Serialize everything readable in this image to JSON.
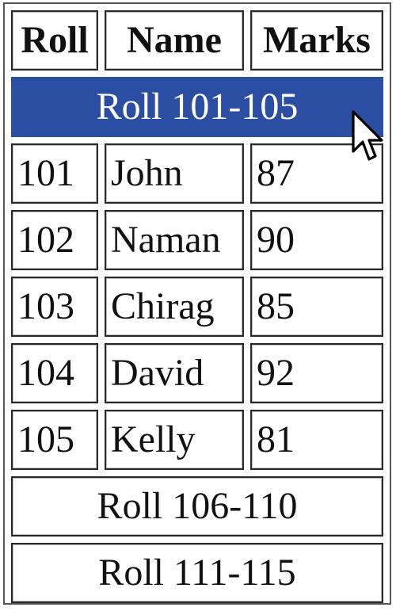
{
  "table": {
    "headers": [
      "Roll",
      "Name",
      "Marks"
    ],
    "groups": [
      {
        "label": "Roll 101-105",
        "active": true,
        "rows": [
          [
            "101",
            "John",
            "87"
          ],
          [
            "102",
            "Naman",
            "90"
          ],
          [
            "103",
            "Chirag",
            "85"
          ],
          [
            "104",
            "David",
            "92"
          ],
          [
            "105",
            "Kelly",
            "81"
          ]
        ]
      },
      {
        "label": "Roll 106-110",
        "active": false
      },
      {
        "label": "Roll 111-115",
        "active": false
      }
    ]
  },
  "colors": {
    "active_group_bg": "#2b4ea2",
    "active_group_text": "#ffffff",
    "cell_border": "#2a2a2a"
  },
  "icons": {
    "cursor": "mouse-pointer-icon"
  }
}
